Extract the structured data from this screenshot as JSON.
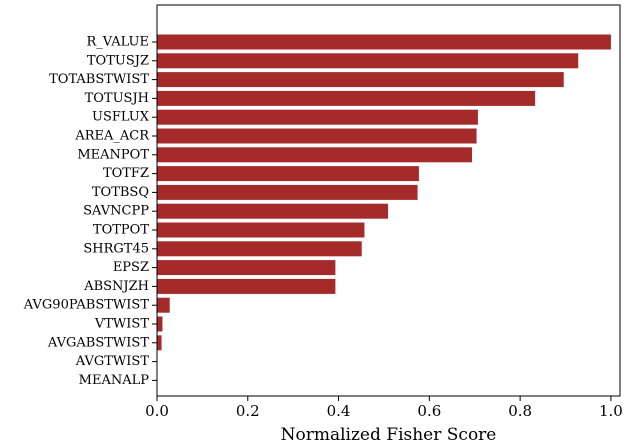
{
  "chart_data": {
    "type": "bar",
    "orientation": "horizontal",
    "title": "",
    "xlabel": "Normalized Fisher Score",
    "ylabel": "",
    "xlim": [
      0.0,
      1.02
    ],
    "xticks": [
      "0.0",
      "0.2",
      "0.4",
      "0.6",
      "0.8",
      "1.0"
    ],
    "xtick_values": [
      0.0,
      0.2,
      0.4,
      0.6,
      0.8,
      1.0
    ],
    "grid": false,
    "bar_color": "#a52a2a",
    "categories": [
      "R_VALUE",
      "TOTUSJZ",
      "TOTABSTWIST",
      "TOTUSJH",
      "USFLUX",
      "AREA_ACR",
      "MEANPOT",
      "TOTFZ",
      "TOTBSQ",
      "SAVNCPP",
      "TOTPOT",
      "SHRGT45",
      "EPSZ",
      "ABSNJZH",
      "AVG90PABSTWIST",
      "VTWIST",
      "AVGABSTWIST",
      "AVGTWIST",
      "MEANALP"
    ],
    "values": [
      1.0,
      0.928,
      0.896,
      0.833,
      0.707,
      0.704,
      0.694,
      0.577,
      0.574,
      0.509,
      0.457,
      0.451,
      0.393,
      0.393,
      0.028,
      0.012,
      0.01,
      0.001,
      0.0
    ]
  }
}
